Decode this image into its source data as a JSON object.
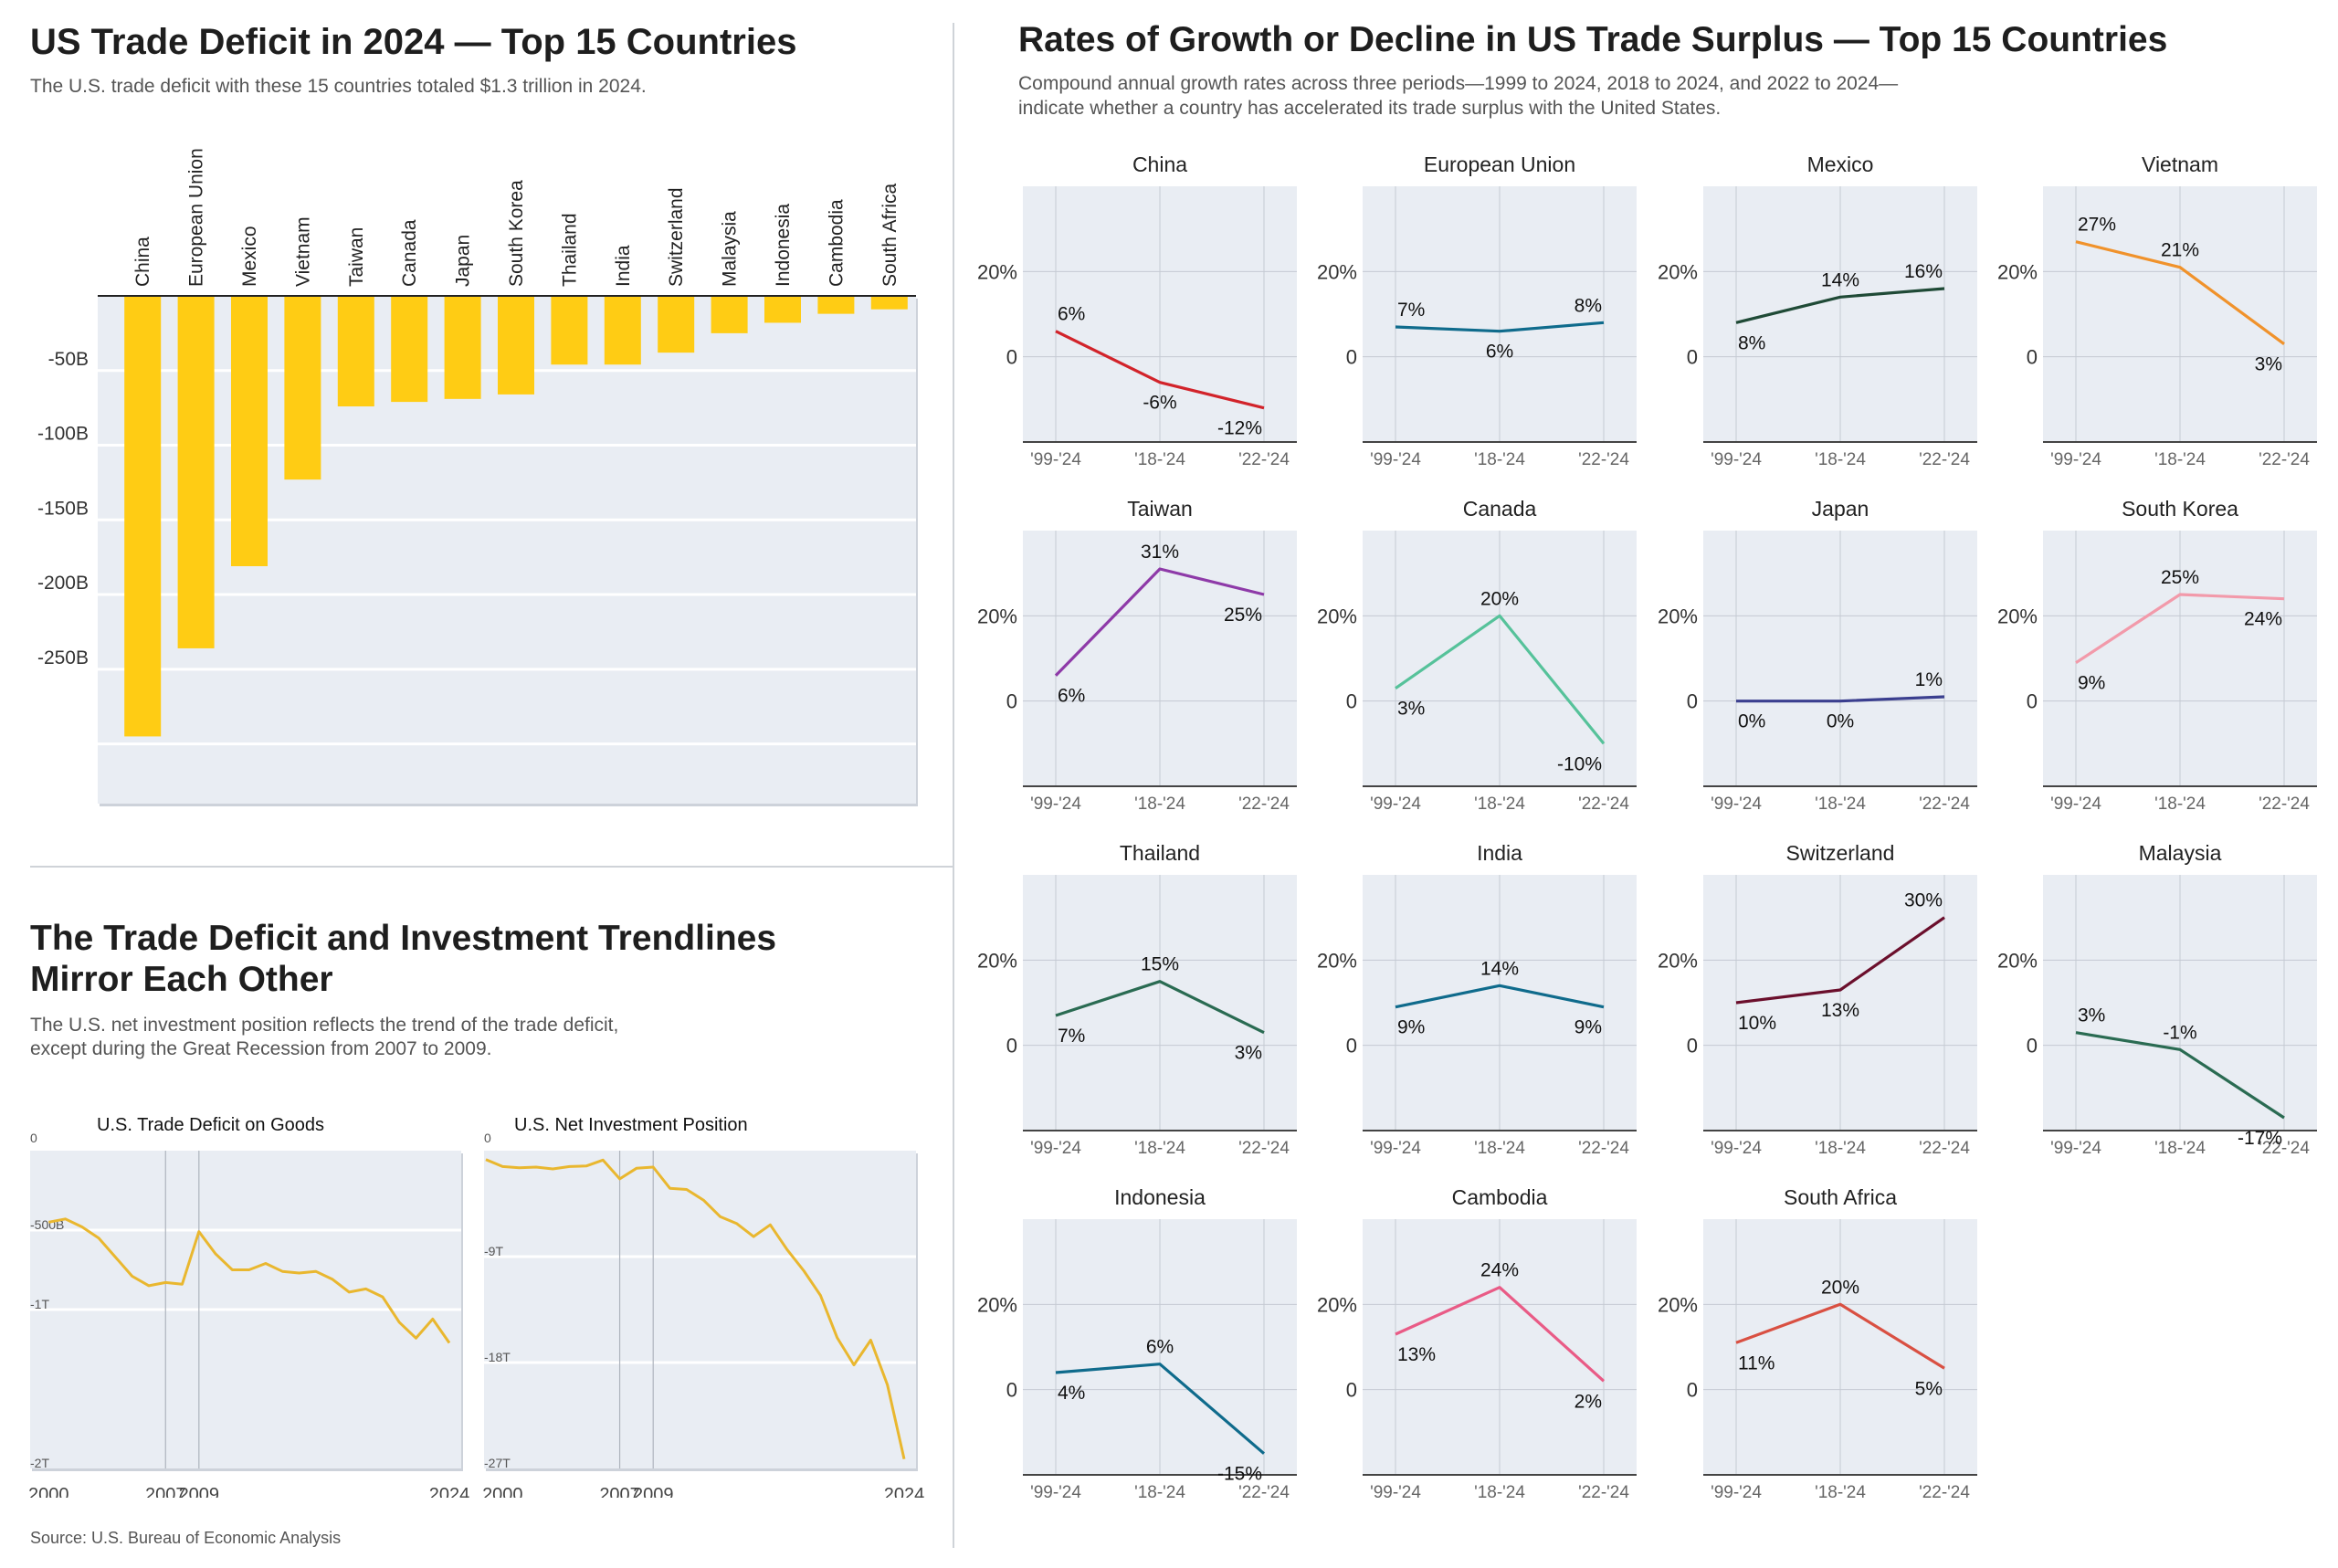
{
  "colors": {
    "panel_bg": "#e9edf3",
    "bar": "#ffcc14",
    "line_gold": "#e9b72f",
    "gridline": "#ffffff",
    "small_grid": "#c5cad3",
    "divider": "#cfd3d8"
  },
  "deficit_section": {
    "title": "US Trade Deficit in 2024 — Top 15 Countries",
    "subtitle": "The U.S. trade deficit with these 15 countries totaled $1.3 trillion in 2024."
  },
  "trend_section": {
    "title_line1": "The Trade Deficit and Investment Trendlines",
    "title_line2": "Mirror Each Other",
    "subtitle_line1": "The U.S. net investment position reflects the trend of the trade deficit,",
    "subtitle_line2": "except during the Great Recession from 2007 to 2009."
  },
  "growth_section": {
    "title": "Rates of Growth or Decline in US Trade Surplus — Top 15 Countries",
    "subtitle_line1": "Compound annual growth rates across three periods—1999 to 2024, 2018 to 2024, and 2022 to 2024—",
    "subtitle_line2": "indicate whether a country has accelerated its trade surplus with the United States."
  },
  "source": "Source: U.S. Bureau of Economic Analysis",
  "chart_data": [
    {
      "type": "bar",
      "id": "deficit",
      "categories": [
        "China",
        "European Union",
        "Mexico",
        "Vietnam",
        "Taiwan",
        "Canada",
        "Japan",
        "South Korea",
        "Thailand",
        "India",
        "Switzerland",
        "Malaysia",
        "Indonesia",
        "Cambodia",
        "South Africa"
      ],
      "values": [
        -295,
        -236,
        -181,
        -123,
        -74,
        -71,
        -69,
        -66,
        -46,
        -46,
        -38,
        -25,
        -18,
        -12,
        -9
      ],
      "ylim": [
        -340,
        0
      ],
      "yticks": [
        -50,
        -100,
        -150,
        -200,
        -250,
        -300
      ],
      "ytick_labels": [
        "-50B",
        "-100B",
        "-150B",
        "-200B",
        "-250B",
        ""
      ],
      "grid": true
    },
    {
      "type": "line",
      "id": "goods",
      "title": "U.S. Trade Deficit on Goods",
      "x": [
        2000,
        2001,
        2002,
        2003,
        2004,
        2005,
        2006,
        2007,
        2008,
        2009,
        2010,
        2011,
        2012,
        2013,
        2014,
        2015,
        2016,
        2017,
        2018,
        2019,
        2020,
        2021,
        2022,
        2023,
        2024
      ],
      "y": [
        -0.45,
        -0.43,
        -0.48,
        -0.55,
        -0.67,
        -0.79,
        -0.85,
        -0.83,
        -0.84,
        -0.51,
        -0.65,
        -0.75,
        -0.75,
        -0.71,
        -0.76,
        -0.77,
        -0.76,
        -0.81,
        -0.89,
        -0.87,
        -0.92,
        -1.08,
        -1.18,
        -1.06,
        -1.21
      ],
      "ylim": [
        -2.0,
        0
      ],
      "yticks": [
        0,
        -0.5,
        -1.0,
        -2.0
      ],
      "ytick_labels": [
        "0",
        "-500B",
        "-1T",
        "-2T"
      ],
      "xticks": [
        2000,
        2007,
        2009,
        2024
      ],
      "vlines": [
        2007,
        2009
      ],
      "hgrid": [
        -0.5,
        -1.0
      ]
    },
    {
      "type": "line",
      "id": "niip",
      "title": "U.S. Net Investment Position",
      "x": [
        1999,
        2000,
        2001,
        2002,
        2003,
        2004,
        2005,
        2006,
        2007,
        2008,
        2009,
        2010,
        2011,
        2012,
        2013,
        2014,
        2015,
        2016,
        2017,
        2018,
        2019,
        2020,
        2021,
        2022,
        2023,
        2024
      ],
      "y": [
        -0.75,
        -1.35,
        -1.45,
        -1.4,
        -1.55,
        -1.35,
        -1.3,
        -0.8,
        -2.4,
        -1.5,
        -1.4,
        -3.2,
        -3.3,
        -4.2,
        -5.6,
        -6.2,
        -7.3,
        -6.3,
        -8.4,
        -10.2,
        -12.3,
        -15.9,
        -18.2,
        -16.1,
        -19.9,
        -26.2
      ],
      "ylim": [
        -27,
        0
      ],
      "yticks": [
        0,
        -9,
        -18,
        -27
      ],
      "ytick_labels": [
        "0",
        "-9T",
        "-18T",
        "-27T"
      ],
      "xticks": [
        2000,
        2007,
        2009,
        2024
      ],
      "vlines": [
        2007,
        2009
      ],
      "hgrid": [
        -9,
        -18
      ]
    },
    {
      "type": "line",
      "id": "cagr",
      "periods": [
        "'99-'24",
        "'18-'24",
        "'22-'24"
      ],
      "ylim": [
        -20,
        40
      ],
      "yticks": [
        20,
        0
      ],
      "ytick_labels": [
        "20%",
        "0"
      ],
      "series": [
        {
          "name": "China",
          "values": [
            6,
            -6,
            -12
          ],
          "labels": [
            "6%",
            "-6%",
            "-12%"
          ],
          "color": "#d2232a"
        },
        {
          "name": "European Union",
          "values": [
            7,
            6,
            8
          ],
          "labels": [
            "7%",
            "6%",
            "8%"
          ],
          "color": "#0f6b8c"
        },
        {
          "name": "Mexico",
          "values": [
            8,
            14,
            16
          ],
          "labels": [
            "8%",
            "14%",
            "16%"
          ],
          "color": "#1f4a36"
        },
        {
          "name": "Vietnam",
          "values": [
            27,
            21,
            3
          ],
          "labels": [
            "27%",
            "21%",
            "3%"
          ],
          "color": "#f0922b"
        },
        {
          "name": "Taiwan",
          "values": [
            6,
            31,
            25
          ],
          "labels": [
            "6%",
            "31%",
            "25%"
          ],
          "color": "#8e3aa8"
        },
        {
          "name": "Canada",
          "values": [
            3,
            20,
            -10
          ],
          "labels": [
            "3%",
            "20%",
            "-10%"
          ],
          "color": "#56c29a"
        },
        {
          "name": "Japan",
          "values": [
            0,
            0,
            1
          ],
          "labels": [
            "0%",
            "0%",
            "1%"
          ],
          "color": "#3b3f8f"
        },
        {
          "name": "South Korea",
          "values": [
            9,
            25,
            24
          ],
          "labels": [
            "9%",
            "25%",
            "24%"
          ],
          "color": "#f29aaa"
        },
        {
          "name": "Thailand",
          "values": [
            7,
            15,
            3
          ],
          "labels": [
            "7%",
            "15%",
            "3%"
          ],
          "color": "#2a6b52"
        },
        {
          "name": "India",
          "values": [
            9,
            14,
            9
          ],
          "labels": [
            "9%",
            "14%",
            "9%"
          ],
          "color": "#0f6b8c"
        },
        {
          "name": "Switzerland",
          "values": [
            10,
            13,
            30
          ],
          "labels": [
            "10%",
            "13%",
            "30%"
          ],
          "color": "#6b0f2c"
        },
        {
          "name": "Malaysia",
          "values": [
            3,
            -1,
            -17
          ],
          "labels": [
            "3%",
            "-1%",
            "-17%"
          ],
          "color": "#2a6b52"
        },
        {
          "name": "Indonesia",
          "values": [
            4,
            6,
            -15
          ],
          "labels": [
            "4%",
            "6%",
            "-15%"
          ],
          "color": "#0f6b8c"
        },
        {
          "name": "Cambodia",
          "values": [
            13,
            24,
            2
          ],
          "labels": [
            "13%",
            "24%",
            "2%"
          ],
          "color": "#e95b86"
        },
        {
          "name": "South Africa",
          "values": [
            11,
            20,
            5
          ],
          "labels": [
            "11%",
            "20%",
            "5%"
          ],
          "color": "#d95042"
        }
      ]
    }
  ]
}
